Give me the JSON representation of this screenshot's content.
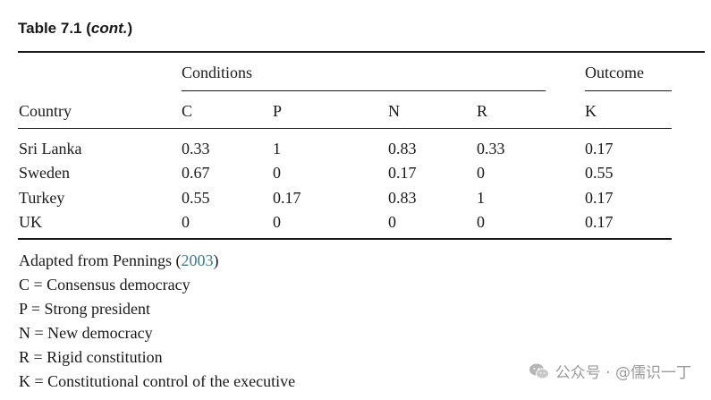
{
  "table": {
    "title_main": "Table 7.1 (",
    "title_italic": "cont.",
    "title_close": ")",
    "group_conditions": "Conditions",
    "group_outcome": "Outcome",
    "columns": [
      "Country",
      "C",
      "P",
      "N",
      "R",
      "K"
    ],
    "rows": [
      [
        "Sri Lanka",
        "0.33",
        "1",
        "0.83",
        "0.33",
        "0.17"
      ],
      [
        "Sweden",
        "0.67",
        "0",
        "0.17",
        "0",
        "0.55"
      ],
      [
        "Turkey",
        "0.55",
        "0.17",
        "0.83",
        "1",
        "0.17"
      ],
      [
        "UK",
        "0",
        "0",
        "0",
        "0",
        "0.17"
      ]
    ]
  },
  "notes": {
    "source_prefix": "Adapted from Pennings (",
    "source_year": "2003",
    "source_suffix": ")",
    "legend": [
      "C = Consensus democracy",
      "P = Strong president",
      "N = New democracy",
      "R = Rigid constitution",
      "K = Constitutional control of the executive"
    ]
  },
  "watermark": {
    "icon": "wechat-icon",
    "text": "公众号 · @儒识一丁"
  }
}
